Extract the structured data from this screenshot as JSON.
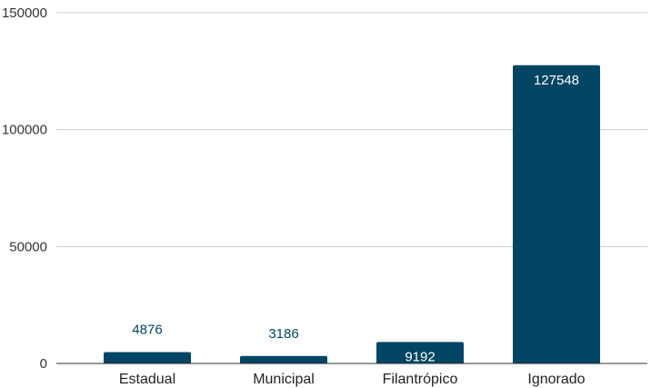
{
  "chart_data": {
    "type": "bar",
    "title": "",
    "xlabel": "",
    "ylabel": "",
    "categories": [
      "Estadual",
      "Municipal",
      "Filantrópico",
      "Ignorado"
    ],
    "values": [
      4876,
      3186,
      9192,
      127548
    ],
    "value_labels": [
      "4876",
      "3186",
      "9192",
      "127548"
    ],
    "ylim": [
      0,
      150000
    ],
    "yticks": [
      0,
      50000,
      100000,
      150000
    ],
    "ytick_labels": [
      "0",
      "50000",
      "100000",
      "150000"
    ],
    "grid": true,
    "legend": "none",
    "colors": {
      "bar": "#004563",
      "grid": "#cccccc",
      "axis": "#333333",
      "label_outside": "#004563",
      "label_inside": "#ffffff"
    }
  }
}
